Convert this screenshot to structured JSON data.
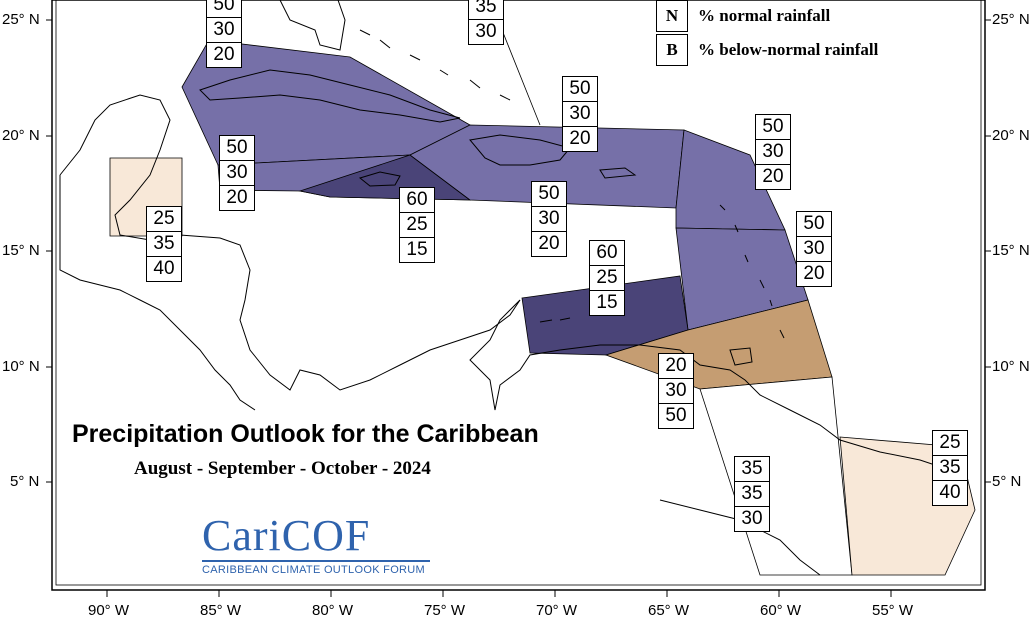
{
  "title": "Precipitation Outlook for the Caribbean",
  "subtitle": "August - September - October - 2024",
  "legend": [
    {
      "key": "N",
      "label": "% normal rainfall"
    },
    {
      "key": "B",
      "label": "% below-normal rainfall"
    }
  ],
  "logo": {
    "word_part1": "Cari",
    "word_part2": "COF",
    "tagline": "CARIBBEAN CLIMATE OUTLOOK FORUM"
  },
  "lat_labels": [
    "25° N",
    "20° N",
    "15° N",
    "10° N",
    "5° N"
  ],
  "lon_labels": [
    "90° W",
    "85° W",
    "80° W",
    "75° W",
    "70° W",
    "65° W",
    "60° W",
    "55° W"
  ],
  "colors": {
    "dry_above_normal": "#f8e8d8",
    "normal_climatology": "#ffffff",
    "wet_mid": "#7670a8",
    "wet_strong": "#4a4478",
    "dry_below": "#c59d72"
  },
  "forecast_boxes": [
    {
      "values": [
        "50",
        "30",
        "20"
      ]
    },
    {
      "values": [
        "35",
        "30"
      ]
    },
    {
      "values": [
        "50",
        "30",
        "20"
      ]
    },
    {
      "values": [
        "50",
        "30",
        "20"
      ]
    },
    {
      "values": [
        "50",
        "30",
        "20"
      ]
    },
    {
      "values": [
        "60",
        "25",
        "15"
      ]
    },
    {
      "values": [
        "50",
        "30",
        "20"
      ]
    },
    {
      "values": [
        "25",
        "35",
        "40"
      ]
    },
    {
      "values": [
        "50",
        "30",
        "20"
      ]
    },
    {
      "values": [
        "60",
        "25",
        "15"
      ]
    },
    {
      "values": [
        "20",
        "30",
        "50"
      ]
    },
    {
      "values": [
        "35",
        "35",
        "30"
      ]
    },
    {
      "values": [
        "25",
        "35",
        "40"
      ]
    }
  ]
}
